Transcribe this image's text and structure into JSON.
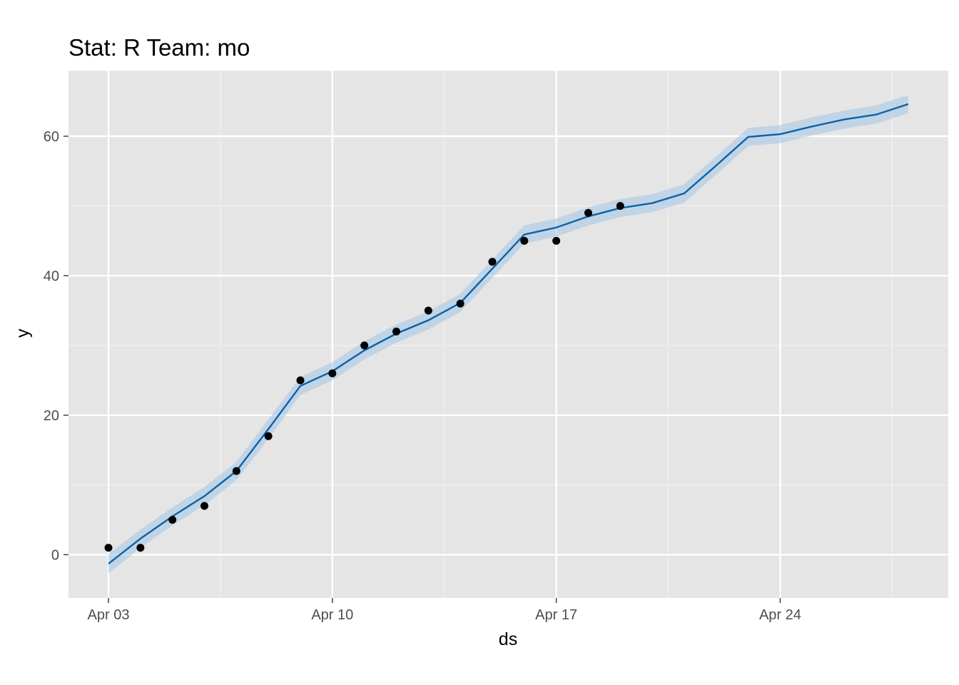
{
  "chart_data": {
    "type": "line",
    "title": "Stat: R Team: mo",
    "xlabel": "ds",
    "ylabel": "y",
    "x_tick_labels": [
      "Apr 03",
      "Apr 10",
      "Apr 17",
      "Apr 24"
    ],
    "x_tick_dates": [
      "2023-04-03",
      "2023-04-10",
      "2023-04-17",
      "2023-04-24"
    ],
    "xlim": [
      "2023-04-02",
      "2023-04-28"
    ],
    "y_ticks": [
      0,
      20,
      40,
      60
    ],
    "ylim": [
      -6.2,
      69.4
    ],
    "grid": true,
    "colors": {
      "panel": "#e5e5e5",
      "grid": "#ffffff",
      "line": "#0b62a8",
      "band": "#a6c8e6",
      "points": "#000000"
    },
    "observed": {
      "x": [
        "2023-04-03",
        "2023-04-04",
        "2023-04-05",
        "2023-04-06",
        "2023-04-07",
        "2023-04-08",
        "2023-04-09",
        "2023-04-10",
        "2023-04-11",
        "2023-04-12",
        "2023-04-13",
        "2023-04-14",
        "2023-04-15",
        "2023-04-16",
        "2023-04-17",
        "2023-04-18",
        "2023-04-19"
      ],
      "y": [
        1,
        1,
        5,
        7,
        12,
        17,
        25,
        26,
        30,
        32,
        35,
        36,
        42,
        45,
        45,
        49,
        50
      ]
    },
    "forecast": {
      "x": [
        "2023-04-03",
        "2023-04-04",
        "2023-04-05",
        "2023-04-06",
        "2023-04-07",
        "2023-04-08",
        "2023-04-09",
        "2023-04-10",
        "2023-04-11",
        "2023-04-12",
        "2023-04-13",
        "2023-04-14",
        "2023-04-15",
        "2023-04-16",
        "2023-04-17",
        "2023-04-18",
        "2023-04-19",
        "2023-04-20",
        "2023-04-21",
        "2023-04-22",
        "2023-04-23",
        "2023-04-24",
        "2023-04-25",
        "2023-04-26",
        "2023-04-27",
        "2023-04-28"
      ],
      "yhat": [
        -1.3,
        2.3,
        5.5,
        8.4,
        12.0,
        18.0,
        24.2,
        26.3,
        29.3,
        31.7,
        33.6,
        36.1,
        41.0,
        45.9,
        46.9,
        48.5,
        49.7,
        50.4,
        51.8,
        55.8,
        59.9,
        60.3,
        61.4,
        62.4,
        63.1,
        64.6
      ],
      "yhat_lower": [
        -2.7,
        1.0,
        4.2,
        7.1,
        10.7,
        16.6,
        22.9,
        25.0,
        28.0,
        30.4,
        32.3,
        34.8,
        39.7,
        44.6,
        45.6,
        47.2,
        48.4,
        49.1,
        50.5,
        54.5,
        58.6,
        59.0,
        60.1,
        61.1,
        61.8,
        63.3
      ],
      "yhat_upper": [
        0.1,
        3.6,
        6.8,
        9.7,
        13.3,
        19.4,
        25.5,
        27.6,
        30.6,
        33.0,
        34.9,
        37.4,
        42.3,
        47.2,
        48.2,
        49.8,
        51.0,
        51.7,
        53.1,
        57.1,
        61.2,
        61.6,
        62.7,
        63.7,
        64.4,
        65.9
      ]
    }
  }
}
